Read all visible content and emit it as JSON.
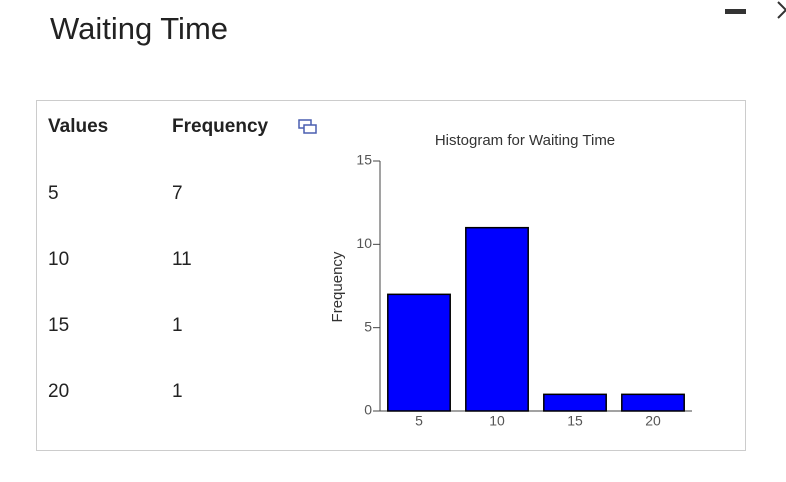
{
  "header": {
    "title": "Waiting Time"
  },
  "table": {
    "columns": [
      "Values",
      "Frequency"
    ],
    "rows": [
      [
        "5",
        "7"
      ],
      [
        "10",
        "11"
      ],
      [
        "15",
        "1"
      ],
      [
        "20",
        "1"
      ]
    ]
  },
  "chart_data": {
    "type": "bar",
    "title": "Histogram for Waiting Time",
    "y_label": "Frequency",
    "categories": [
      "5",
      "10",
      "15",
      "20"
    ],
    "values": [
      7,
      11,
      1,
      1
    ],
    "color": "#0000ff",
    "ylim": [
      0,
      15
    ],
    "yticks": [
      0,
      5,
      10,
      15
    ],
    "grid": false
  }
}
